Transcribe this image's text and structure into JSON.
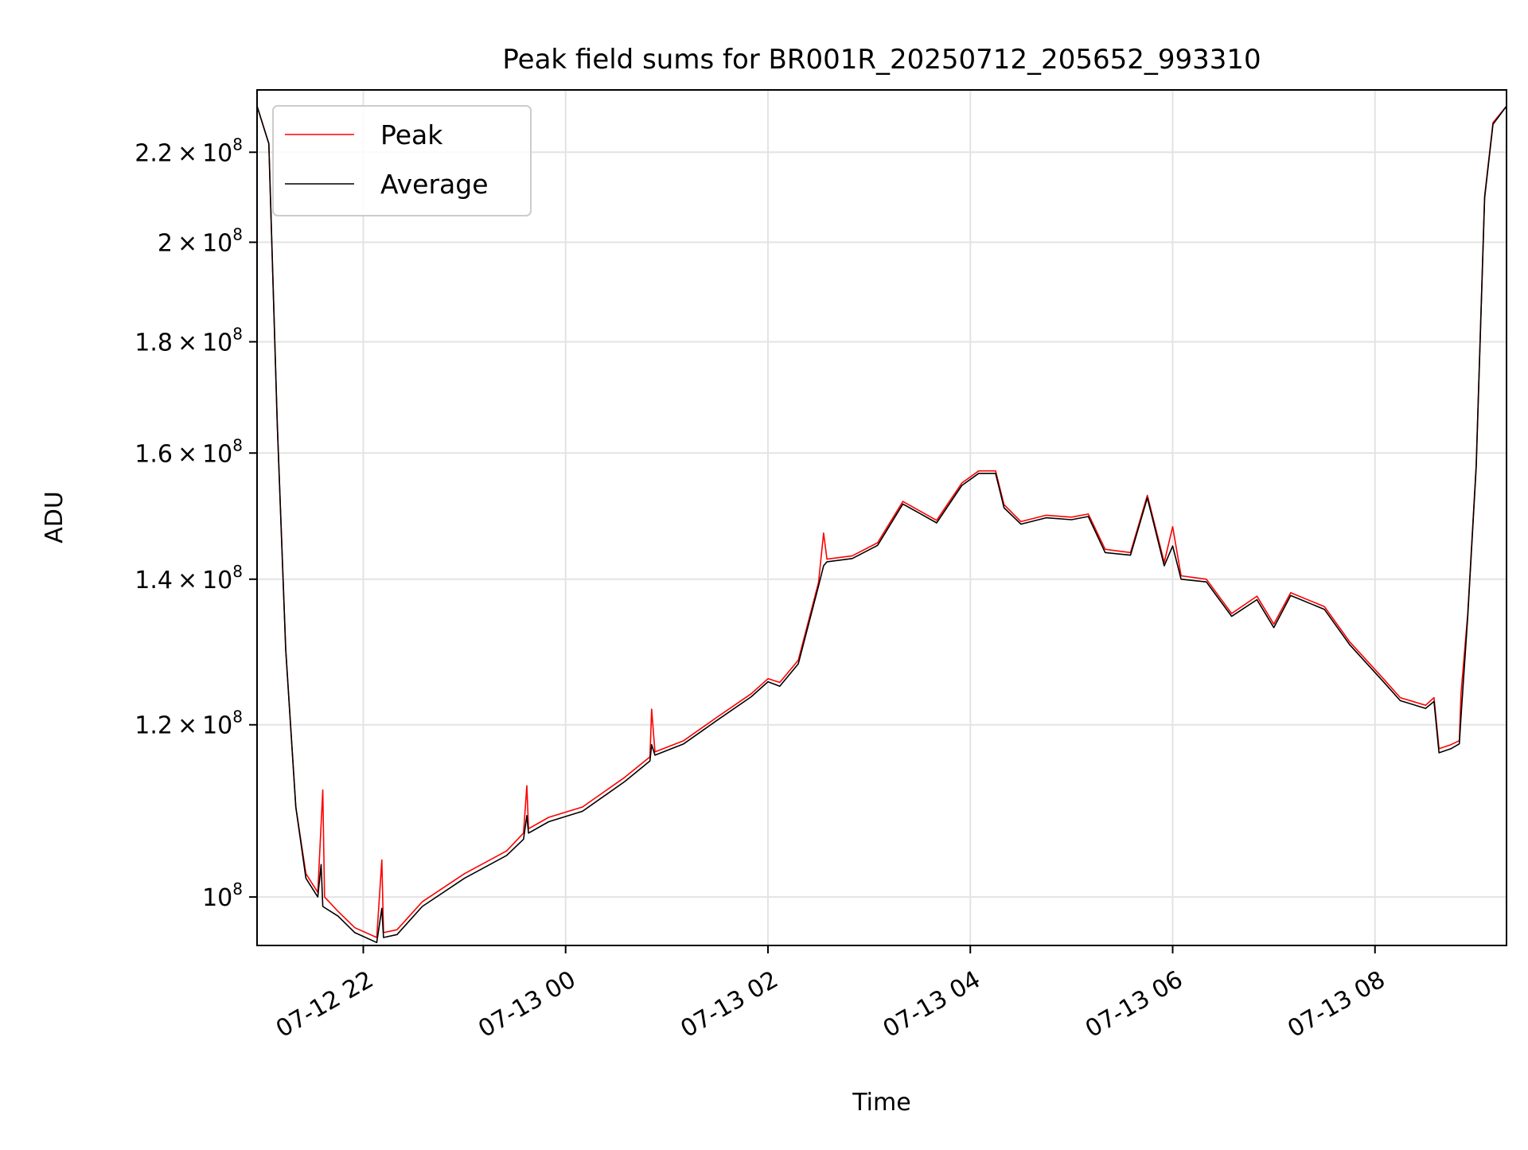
{
  "chart_data": {
    "type": "line",
    "title": "Peak field sums for BR001R_20250712_205652_993310",
    "xlabel": "Time",
    "ylabel": "ADU",
    "y_scale": "log",
    "ylim": [
      95000000,
      235000000
    ],
    "xlim": [
      "2025-07-12 20:57",
      "2025-07-13 09:18"
    ],
    "grid": true,
    "legend_position": "upper-left",
    "x_ticks": [
      {
        "t": "2025-07-12 22:00",
        "label": "07-12 22"
      },
      {
        "t": "2025-07-13 00:00",
        "label": "07-13 00"
      },
      {
        "t": "2025-07-13 02:00",
        "label": "07-13 02"
      },
      {
        "t": "2025-07-13 04:00",
        "label": "07-13 04"
      },
      {
        "t": "2025-07-13 06:00",
        "label": "07-13 06"
      },
      {
        "t": "2025-07-13 08:00",
        "label": "07-13 08"
      }
    ],
    "y_ticks": [
      {
        "value": 100000000,
        "mantissa": "",
        "exponent": "8"
      },
      {
        "value": 120000000,
        "mantissa": "1.2",
        "exponent": "8"
      },
      {
        "value": 140000000,
        "mantissa": "1.4",
        "exponent": "8"
      },
      {
        "value": 160000000,
        "mantissa": "1.6",
        "exponent": "8"
      },
      {
        "value": 180000000,
        "mantissa": "1.8",
        "exponent": "8"
      },
      {
        "value": 200000000,
        "mantissa": "2",
        "exponent": "8"
      },
      {
        "value": 220000000,
        "mantissa": "2.2",
        "exponent": "8"
      }
    ],
    "series": [
      {
        "name": "Peak",
        "color": "#ff0000",
        "points": [
          [
            "2025-07-12 20:57",
            231000000
          ],
          [
            "2025-07-12 21:04",
            222000000
          ],
          [
            "2025-07-12 21:09",
            165000000
          ],
          [
            "2025-07-12 21:14",
            130000000
          ],
          [
            "2025-07-12 21:20",
            110000000
          ],
          [
            "2025-07-12 21:26",
            102500000
          ],
          [
            "2025-07-12 21:33",
            100500000
          ],
          [
            "2025-07-12 21:36",
            112000000
          ],
          [
            "2025-07-12 21:37",
            100000000
          ],
          [
            "2025-07-12 21:45",
            98500000
          ],
          [
            "2025-07-12 21:55",
            96800000
          ],
          [
            "2025-07-12 22:08",
            95800000
          ],
          [
            "2025-07-12 22:11",
            104000000
          ],
          [
            "2025-07-12 22:12",
            96300000
          ],
          [
            "2025-07-12 22:20",
            96600000
          ],
          [
            "2025-07-12 22:35",
            99500000
          ],
          [
            "2025-07-12 23:00",
            102500000
          ],
          [
            "2025-07-12 23:25",
            105000000
          ],
          [
            "2025-07-12 23:35",
            107000000
          ],
          [
            "2025-07-12 23:37",
            112500000
          ],
          [
            "2025-07-12 23:38",
            107500000
          ],
          [
            "2025-07-12 23:50",
            108800000
          ],
          [
            "2025-07-13 00:10",
            110000000
          ],
          [
            "2025-07-13 00:35",
            113500000
          ],
          [
            "2025-07-13 00:50",
            116000000
          ],
          [
            "2025-07-13 00:51",
            122000000
          ],
          [
            "2025-07-13 00:53",
            116600000
          ],
          [
            "2025-07-13 01:10",
            118000000
          ],
          [
            "2025-07-13 01:30",
            121000000
          ],
          [
            "2025-07-13 01:50",
            124000000
          ],
          [
            "2025-07-13 02:00",
            126000000
          ],
          [
            "2025-07-13 02:07",
            125500000
          ],
          [
            "2025-07-13 02:18",
            128500000
          ],
          [
            "2025-07-13 02:30",
            139500000
          ],
          [
            "2025-07-13 02:33",
            147000000
          ],
          [
            "2025-07-13 02:35",
            143000000
          ],
          [
            "2025-07-13 02:50",
            143500000
          ],
          [
            "2025-07-13 03:05",
            145500000
          ],
          [
            "2025-07-13 03:20",
            152000000
          ],
          [
            "2025-07-13 03:30",
            150500000
          ],
          [
            "2025-07-13 03:40",
            149000000
          ],
          [
            "2025-07-13 03:55",
            155000000
          ],
          [
            "2025-07-13 04:05",
            157000000
          ],
          [
            "2025-07-13 04:15",
            157000000
          ],
          [
            "2025-07-13 04:20",
            151500000
          ],
          [
            "2025-07-13 04:30",
            148800000
          ],
          [
            "2025-07-13 04:45",
            149800000
          ],
          [
            "2025-07-13 05:00",
            149500000
          ],
          [
            "2025-07-13 05:10",
            150000000
          ],
          [
            "2025-07-13 05:20",
            144500000
          ],
          [
            "2025-07-13 05:35",
            144000000
          ],
          [
            "2025-07-13 05:45",
            153000000
          ],
          [
            "2025-07-13 05:55",
            142500000
          ],
          [
            "2025-07-13 06:00",
            148000000
          ],
          [
            "2025-07-13 06:05",
            140500000
          ],
          [
            "2025-07-13 06:20",
            140000000
          ],
          [
            "2025-07-13 06:35",
            135000000
          ],
          [
            "2025-07-13 06:50",
            137500000
          ],
          [
            "2025-07-13 07:00",
            133500000
          ],
          [
            "2025-07-13 07:10",
            138000000
          ],
          [
            "2025-07-13 07:30",
            136000000
          ],
          [
            "2025-07-13 07:45",
            131000000
          ],
          [
            "2025-07-13 08:05",
            126000000
          ],
          [
            "2025-07-13 08:15",
            123500000
          ],
          [
            "2025-07-13 08:30",
            122500000
          ],
          [
            "2025-07-13 08:35",
            123500000
          ],
          [
            "2025-07-13 08:38",
            117000000
          ],
          [
            "2025-07-13 08:45",
            117500000
          ],
          [
            "2025-07-13 08:50",
            118000000
          ],
          [
            "2025-07-13 08:51",
            124000000
          ],
          [
            "2025-07-13 08:55",
            135000000
          ],
          [
            "2025-07-13 09:00",
            158000000
          ],
          [
            "2025-07-13 09:05",
            210000000
          ],
          [
            "2025-07-13 09:10",
            227000000
          ],
          [
            "2025-07-13 09:18",
            231000000
          ]
        ]
      },
      {
        "name": "Average",
        "color": "#000000",
        "points": [
          [
            "2025-07-12 20:57",
            231000000
          ],
          [
            "2025-07-12 21:04",
            222000000
          ],
          [
            "2025-07-12 21:09",
            165000000
          ],
          [
            "2025-07-12 21:14",
            130000000
          ],
          [
            "2025-07-12 21:20",
            110000000
          ],
          [
            "2025-07-12 21:26",
            102000000
          ],
          [
            "2025-07-12 21:33",
            100000000
          ],
          [
            "2025-07-12 21:35",
            103500000
          ],
          [
            "2025-07-12 21:36",
            99000000
          ],
          [
            "2025-07-12 21:45",
            98000000
          ],
          [
            "2025-07-12 21:55",
            96300000
          ],
          [
            "2025-07-12 22:08",
            95300000
          ],
          [
            "2025-07-12 22:11",
            98800000
          ],
          [
            "2025-07-12 22:12",
            95800000
          ],
          [
            "2025-07-12 22:20",
            96100000
          ],
          [
            "2025-07-12 22:35",
            99000000
          ],
          [
            "2025-07-12 23:00",
            102000000
          ],
          [
            "2025-07-12 23:25",
            104500000
          ],
          [
            "2025-07-12 23:35",
            106300000
          ],
          [
            "2025-07-12 23:37",
            109000000
          ],
          [
            "2025-07-12 23:38",
            107000000
          ],
          [
            "2025-07-12 23:50",
            108300000
          ],
          [
            "2025-07-13 00:10",
            109500000
          ],
          [
            "2025-07-13 00:35",
            113000000
          ],
          [
            "2025-07-13 00:50",
            115500000
          ],
          [
            "2025-07-13 00:51",
            117500000
          ],
          [
            "2025-07-13 00:53",
            116200000
          ],
          [
            "2025-07-13 01:10",
            117600000
          ],
          [
            "2025-07-13 01:30",
            120600000
          ],
          [
            "2025-07-13 01:50",
            123600000
          ],
          [
            "2025-07-13 02:00",
            125600000
          ],
          [
            "2025-07-13 02:07",
            125000000
          ],
          [
            "2025-07-13 02:18",
            128000000
          ],
          [
            "2025-07-13 02:30",
            139000000
          ],
          [
            "2025-07-13 02:33",
            142000000
          ],
          [
            "2025-07-13 02:35",
            142600000
          ],
          [
            "2025-07-13 02:50",
            143100000
          ],
          [
            "2025-07-13 03:05",
            145100000
          ],
          [
            "2025-07-13 03:20",
            151600000
          ],
          [
            "2025-07-13 03:30",
            150100000
          ],
          [
            "2025-07-13 03:40",
            148600000
          ],
          [
            "2025-07-13 03:55",
            154600000
          ],
          [
            "2025-07-13 04:05",
            156600000
          ],
          [
            "2025-07-13 04:15",
            156600000
          ],
          [
            "2025-07-13 04:20",
            151000000
          ],
          [
            "2025-07-13 04:30",
            148400000
          ],
          [
            "2025-07-13 04:45",
            149400000
          ],
          [
            "2025-07-13 05:00",
            149100000
          ],
          [
            "2025-07-13 05:10",
            149600000
          ],
          [
            "2025-07-13 05:20",
            144000000
          ],
          [
            "2025-07-13 05:35",
            143600000
          ],
          [
            "2025-07-13 05:45",
            152600000
          ],
          [
            "2025-07-13 05:55",
            142000000
          ],
          [
            "2025-07-13 06:00",
            145000000
          ],
          [
            "2025-07-13 06:05",
            140000000
          ],
          [
            "2025-07-13 06:20",
            139600000
          ],
          [
            "2025-07-13 06:35",
            134600000
          ],
          [
            "2025-07-13 06:50",
            137000000
          ],
          [
            "2025-07-13 07:00",
            133000000
          ],
          [
            "2025-07-13 07:10",
            137600000
          ],
          [
            "2025-07-13 07:30",
            135600000
          ],
          [
            "2025-07-13 07:45",
            130600000
          ],
          [
            "2025-07-13 08:05",
            125600000
          ],
          [
            "2025-07-13 08:15",
            123100000
          ],
          [
            "2025-07-13 08:30",
            122100000
          ],
          [
            "2025-07-13 08:35",
            123000000
          ],
          [
            "2025-07-13 08:38",
            116500000
          ],
          [
            "2025-07-13 08:45",
            117000000
          ],
          [
            "2025-07-13 08:50",
            117600000
          ],
          [
            "2025-07-13 08:51",
            121000000
          ],
          [
            "2025-07-13 08:55",
            134600000
          ],
          [
            "2025-07-13 09:00",
            157600000
          ],
          [
            "2025-07-13 09:05",
            209600000
          ],
          [
            "2025-07-13 09:10",
            226600000
          ],
          [
            "2025-07-13 09:18",
            231000000
          ]
        ]
      }
    ]
  }
}
